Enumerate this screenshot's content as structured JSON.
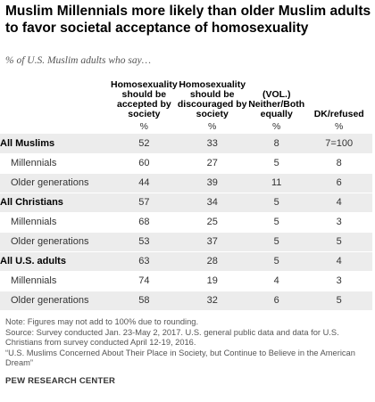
{
  "title": "Muslim Millennials more likely than older Muslim adults to favor societal acceptance of homosexuality",
  "subtitle": "% of U.S. Muslim adults who say…",
  "chart_data": {
    "type": "table",
    "columns": [
      "Homosexuality should be accepted by society",
      "Homosexuality should be discouraged by society",
      "(VOL.) Neither/Both equally",
      "DK/refused"
    ],
    "unit_row": [
      "%",
      "%",
      "%",
      "%"
    ],
    "rows": [
      {
        "label": "All Muslims",
        "group": true,
        "values": [
          "52",
          "33",
          "8",
          "7=100"
        ]
      },
      {
        "label": "Millennials",
        "group": false,
        "values": [
          "60",
          "27",
          "5",
          "8"
        ]
      },
      {
        "label": "Older generations",
        "group": false,
        "values": [
          "44",
          "39",
          "11",
          "6"
        ]
      },
      {
        "label": "All Christians",
        "group": true,
        "values": [
          "57",
          "34",
          "5",
          "4"
        ]
      },
      {
        "label": "Millennials",
        "group": false,
        "values": [
          "68",
          "25",
          "5",
          "3"
        ]
      },
      {
        "label": "Older generations",
        "group": false,
        "values": [
          "53",
          "37",
          "5",
          "5"
        ]
      },
      {
        "label": "All U.S. adults",
        "group": true,
        "values": [
          "63",
          "28",
          "5",
          "4"
        ]
      },
      {
        "label": "Millennials",
        "group": false,
        "values": [
          "74",
          "19",
          "4",
          "3"
        ]
      },
      {
        "label": "Older generations",
        "group": false,
        "values": [
          "58",
          "32",
          "6",
          "5"
        ]
      }
    ]
  },
  "notes": [
    "Note: Figures may not add to 100% due to rounding.",
    "Source: Survey conducted Jan. 23-May 2, 2017. U.S. general public data and data for U.S. Christians from survey conducted April 12-19, 2016.",
    "“U.S. Muslims Concerned About Their Place in Society, but Continue to Believe in the American Dream”"
  ],
  "brand": "PEW RESEARCH CENTER",
  "colors": {
    "stripe": "#ececec",
    "text": "#333333"
  }
}
